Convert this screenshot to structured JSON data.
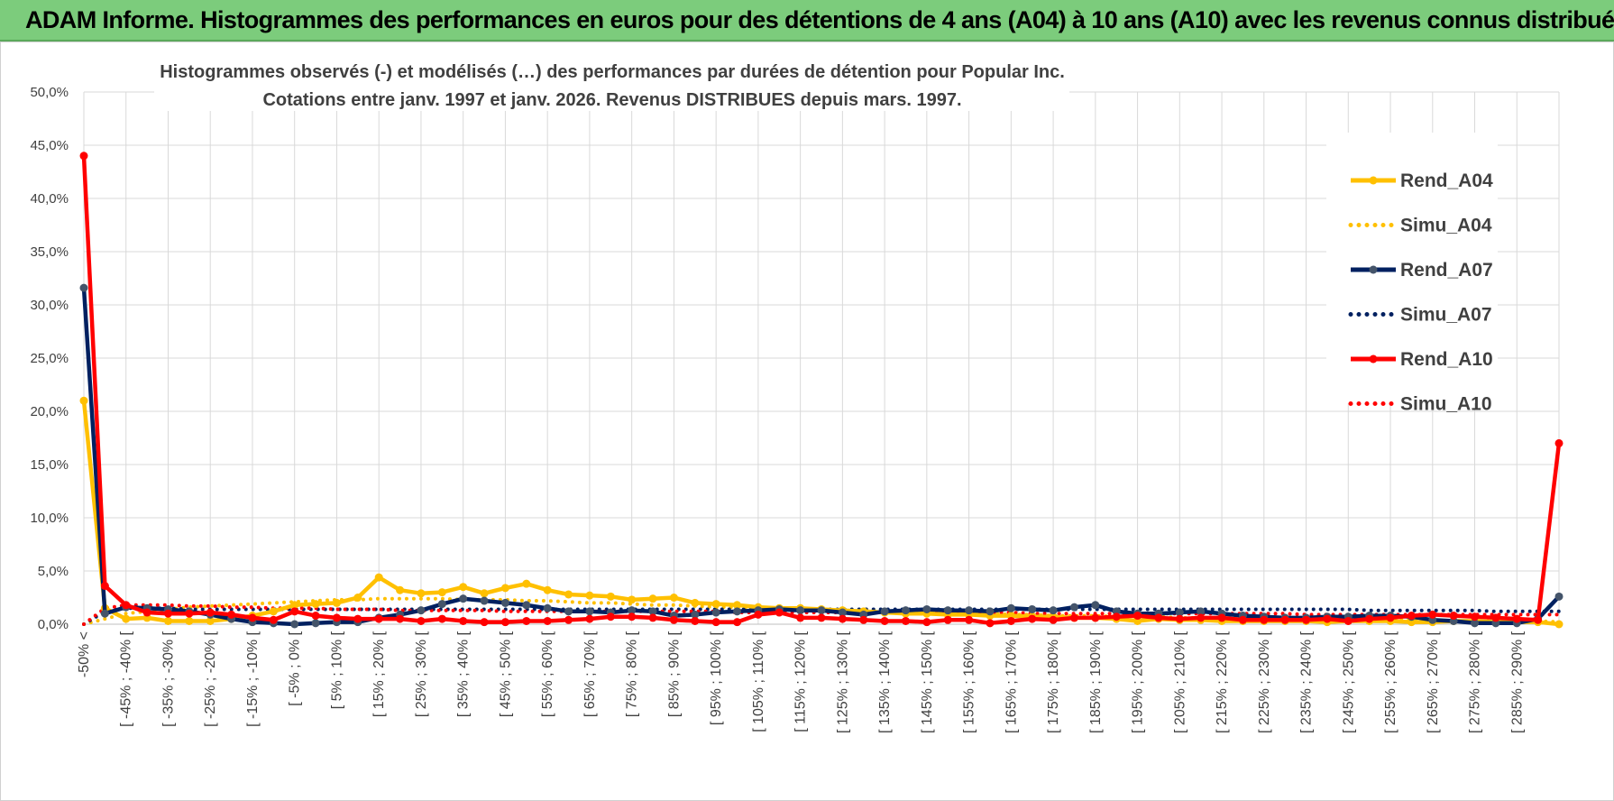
{
  "banner": {
    "title": "ADAM Informe. Histogrammes des performances en euros pour des détentions de 4 ans (A04) à 10 ans (A10) avec les revenus connus distribués",
    "color": "#7ccc7c"
  },
  "chart_data": {
    "type": "line",
    "title": "Histogrammes observés (-) et modélisés (…) des performances par durées de détention pour Popular Inc.",
    "subtitle": "Cotations entre janv. 1997 et janv. 2026. Revenus DISTRIBUES depuis mars. 1997.",
    "ylim": [
      0,
      50
    ],
    "y_ticks": [
      "0,0%",
      "5,0%",
      "10,0%",
      "15,0%",
      "20,0%",
      "25,0%",
      "30,0%",
      "35,0%",
      "40,0%",
      "45,0%",
      "50,0%"
    ],
    "grid": true,
    "legend_position": "right",
    "categories": [
      "-50% <",
      "[ -50% ; -45% [",
      "[ -45% ; -40% [",
      "[ -40% ; -35% [",
      "[ -35% ; -30% [",
      "[ -30% ; -25% [",
      "[ -25% ; -20% [",
      "[ -20% ; -15% [",
      "[ -15% ; -10% [",
      "[ -10% ; -5% [",
      "[ -5% ; 0% [",
      "[ 0% ; 5% [",
      "[ 5% ; 10% [",
      "[ 10% ; 15% [",
      "[ 15% ; 20% [",
      "[ 20% ; 25% [",
      "[ 25% ; 30% [",
      "[ 30% ; 35% [",
      "[ 35% ; 40% [",
      "[ 40% ; 45% [",
      "[ 45% ; 50% [",
      "[ 50% ; 55% [",
      "[ 55% ; 60% [",
      "[ 60% ; 65% [",
      "[ 65% ; 70% [",
      "[ 70% ; 75% [",
      "[ 75% ; 80% [",
      "[ 80% ; 85% [",
      "[ 85% ; 90% [",
      "[ 90% ; 95% [",
      "[ 95% ; 100% [",
      "[ 100% ; 105% [",
      "[ 105% ; 110% [",
      "[ 110% ; 115% [",
      "[ 115% ; 120% [",
      "[ 120% ; 125% [",
      "[ 125% ; 130% [",
      "[ 130% ; 135% [",
      "[ 135% ; 140% [",
      "[ 140% ; 145% [",
      "[ 145% ; 150% [",
      "[ 150% ; 155% [",
      "[ 155% ; 160% [",
      "[ 160% ; 165% [",
      "[ 165% ; 170% [",
      "[ 170% ; 175% [",
      "[ 175% ; 180% [",
      "[ 180% ; 185% [",
      "[ 185% ; 190% [",
      "[ 190% ; 195% [",
      "[ 195% ; 200% [",
      "[ 200% ; 205% [",
      "[ 205% ; 210% [",
      "[ 210% ; 215% [",
      "[ 215% ; 220% [",
      "[ 220% ; 225% [",
      "[ 225% ; 230% [",
      "[ 230% ; 235% [",
      "[ 235% ; 240% [",
      "[ 240% ; 245% [",
      "[ 245% ; 250% [",
      "[ 250% ; 255% [",
      "[ 255% ; 260% [",
      "[ 260% ; 265% [",
      "[ 265% ; 270% [",
      "[ 270% ; 275% [",
      "[ 275% ; 280% [",
      "[ 280% ; 285% [",
      "[ 285% ; 290% [",
      "[ 290% ; 295% [",
      "295% >"
    ],
    "visible_x_labels": [
      "-50% <",
      "[ -45% ; -40% [",
      "[ -35% ; -30% [",
      "[ -25% ; -20% [",
      "[ -15% ; -10% [",
      "[ -5% ; 0% [",
      "[ 5% ; 10% [",
      "[ 15% ; 20% [",
      "[ 25% ; 30% [",
      "[ 35% ; 40% [",
      "[ 45% ; 50% [",
      "[ 55% ; 60% [",
      "[ 65% ; 70% [",
      "[ 75% ; 80% [",
      "[ 85% ; 90% [",
      "[ 95% ; 100% [",
      "[ 105% ; 110% [",
      "[ 115% ; 120% [",
      "[ 125% ; 130% [",
      "[ 135% ; 140% [",
      "[ 145% ; 150% [",
      "[ 155% ; 160% [",
      "[ 165% ; 170% [",
      "[ 175% ; 180% [",
      "[ 185% ; 190% [",
      "[ 195% ; 200% [",
      "[ 205% ; 210% [",
      "[ 215% ; 220% [",
      "[ 225% ; 230% [",
      "[ 235% ; 240% [",
      "[ 245% ; 250% [",
      "[ 255% ; 260% [",
      "[ 265% ; 270% [",
      "[ 275% ; 280% [",
      "[ 285% ; 290% ["
    ],
    "series": [
      {
        "name": "Rend_A04",
        "style": "solid",
        "markers": true,
        "color": "#ffc000",
        "values": [
          21.0,
          1.5,
          0.5,
          0.6,
          0.3,
          0.3,
          0.3,
          0.5,
          0.8,
          1.2,
          1.8,
          1.9,
          2.0,
          2.5,
          4.4,
          3.2,
          2.9,
          3.0,
          3.5,
          2.9,
          3.4,
          3.8,
          3.2,
          2.8,
          2.7,
          2.6,
          2.3,
          2.4,
          2.5,
          2.0,
          1.9,
          1.8,
          1.6,
          1.5,
          1.5,
          1.4,
          1.3,
          1.2,
          1.1,
          1.0,
          1.0,
          0.9,
          0.9,
          0.8,
          0.8,
          0.7,
          0.7,
          0.6,
          0.6,
          0.5,
          0.3,
          0.5,
          0.4,
          0.4,
          0.3,
          0.3,
          0.3,
          0.3,
          0.3,
          0.2,
          0.3,
          0.3,
          0.3,
          0.2,
          0.2,
          0.3,
          0.3,
          0.2,
          0.2,
          0.2,
          0.0
        ]
      },
      {
        "name": "Simu_A04",
        "style": "dotted",
        "markers": false,
        "color": "#ffc000",
        "values": [
          0.0,
          0.5,
          1.0,
          1.2,
          1.4,
          1.6,
          1.7,
          1.8,
          1.9,
          2.0,
          2.1,
          2.2,
          2.3,
          2.3,
          2.4,
          2.4,
          2.4,
          2.4,
          2.3,
          2.3,
          2.3,
          2.2,
          2.2,
          2.1,
          2.0,
          2.0,
          1.9,
          1.8,
          1.8,
          1.7,
          1.6,
          1.6,
          1.5,
          1.5,
          1.4,
          1.4,
          1.3,
          1.2,
          1.2,
          1.1,
          1.1,
          1.0,
          1.0,
          1.0,
          0.9,
          0.9,
          0.8,
          0.8,
          0.8,
          0.7,
          0.7,
          0.7,
          0.6,
          0.6,
          0.6,
          0.6,
          0.5,
          0.5,
          0.5,
          0.5,
          0.4,
          0.4,
          0.4,
          0.4,
          0.4,
          0.3,
          0.3,
          0.3,
          0.3,
          0.3,
          0.2
        ]
      },
      {
        "name": "Rend_A07",
        "style": "solid",
        "markers": true,
        "color": "#002060",
        "values": [
          31.6,
          1.0,
          1.6,
          1.5,
          1.4,
          1.2,
          0.9,
          0.5,
          0.2,
          0.1,
          0.0,
          0.1,
          0.2,
          0.2,
          0.6,
          0.9,
          1.3,
          1.9,
          2.4,
          2.2,
          2.0,
          1.8,
          1.5,
          1.2,
          1.2,
          1.1,
          1.3,
          1.2,
          0.8,
          0.9,
          1.1,
          1.2,
          1.3,
          1.4,
          1.3,
          1.3,
          1.1,
          0.9,
          1.2,
          1.3,
          1.4,
          1.3,
          1.3,
          1.2,
          1.5,
          1.4,
          1.3,
          1.6,
          1.8,
          1.2,
          1.0,
          1.0,
          1.1,
          1.2,
          1.0,
          0.8,
          0.7,
          0.6,
          0.6,
          0.7,
          0.7,
          0.8,
          0.8,
          0.7,
          0.4,
          0.3,
          0.1,
          0.1,
          0.1,
          0.5,
          2.6
        ]
      },
      {
        "name": "Simu_A07",
        "style": "dotted",
        "markers": false,
        "color": "#002060",
        "values": [
          0.0,
          1.2,
          1.5,
          1.5,
          1.5,
          1.4,
          1.4,
          1.4,
          1.4,
          1.4,
          1.4,
          1.4,
          1.4,
          1.4,
          1.4,
          1.4,
          1.4,
          1.4,
          1.4,
          1.4,
          1.4,
          1.4,
          1.4,
          1.4,
          1.4,
          1.4,
          1.4,
          1.4,
          1.4,
          1.4,
          1.4,
          1.4,
          1.4,
          1.4,
          1.4,
          1.4,
          1.4,
          1.4,
          1.4,
          1.4,
          1.4,
          1.4,
          1.4,
          1.4,
          1.4,
          1.4,
          1.4,
          1.4,
          1.4,
          1.4,
          1.4,
          1.4,
          1.4,
          1.4,
          1.4,
          1.4,
          1.4,
          1.4,
          1.4,
          1.4,
          1.4,
          1.3,
          1.3,
          1.3,
          1.3,
          1.3,
          1.3,
          1.2,
          1.2,
          1.2,
          1.2
        ]
      },
      {
        "name": "Rend_A10",
        "style": "solid",
        "markers": true,
        "color": "#ff0000",
        "values": [
          44.0,
          3.6,
          1.8,
          1.1,
          1.0,
          1.0,
          1.1,
          0.9,
          0.6,
          0.4,
          1.2,
          0.8,
          0.6,
          0.5,
          0.5,
          0.5,
          0.3,
          0.5,
          0.3,
          0.2,
          0.2,
          0.3,
          0.3,
          0.4,
          0.5,
          0.7,
          0.7,
          0.6,
          0.4,
          0.3,
          0.2,
          0.2,
          0.9,
          1.1,
          0.6,
          0.6,
          0.5,
          0.4,
          0.3,
          0.3,
          0.2,
          0.4,
          0.4,
          0.1,
          0.3,
          0.5,
          0.4,
          0.6,
          0.6,
          0.7,
          0.8,
          0.6,
          0.5,
          0.6,
          0.6,
          0.4,
          0.4,
          0.4,
          0.4,
          0.5,
          0.3,
          0.5,
          0.6,
          0.8,
          0.9,
          0.8,
          0.7,
          0.6,
          0.5,
          0.4,
          17.0
        ]
      },
      {
        "name": "Simu_A10",
        "style": "dotted",
        "markers": false,
        "color": "#ff0000",
        "values": [
          0.0,
          1.5,
          1.8,
          1.8,
          1.8,
          1.7,
          1.7,
          1.6,
          1.6,
          1.5,
          1.5,
          1.5,
          1.4,
          1.4,
          1.4,
          1.3,
          1.3,
          1.3,
          1.3,
          1.3,
          1.2,
          1.2,
          1.2,
          1.2,
          1.2,
          1.2,
          1.2,
          1.2,
          1.2,
          1.2,
          1.2,
          1.1,
          1.1,
          1.1,
          1.1,
          1.1,
          1.1,
          1.1,
          1.1,
          1.1,
          1.1,
          1.1,
          1.1,
          1.1,
          1.1,
          1.0,
          1.0,
          1.0,
          1.0,
          1.0,
          1.0,
          1.0,
          1.0,
          1.0,
          1.0,
          1.0,
          1.0,
          1.0,
          0.9,
          0.9,
          0.9,
          0.9,
          0.9,
          0.9,
          0.9,
          0.9,
          0.9,
          0.9,
          0.9,
          0.9,
          0.9
        ]
      }
    ]
  }
}
